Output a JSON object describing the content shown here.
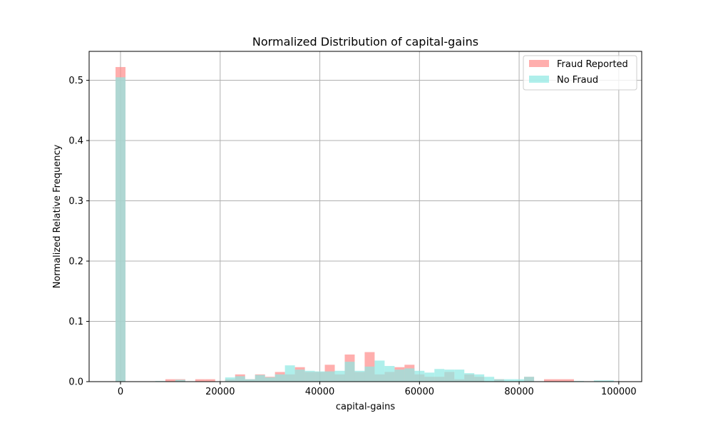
{
  "chart_data": {
    "type": "bar",
    "title": "Normalized Distribution of capital-gains",
    "xlabel": "capital-gains",
    "ylabel": "Normalized Relative Frequency",
    "xlim": [
      -6300,
      104600
    ],
    "ylim": [
      0,
      0.548
    ],
    "xticks": [
      0,
      20000,
      40000,
      60000,
      80000,
      100000
    ],
    "xtick_labels": [
      "0",
      "20000",
      "40000",
      "60000",
      "80000",
      "100000"
    ],
    "yticks": [
      0.0,
      0.1,
      0.2,
      0.3,
      0.4,
      0.5
    ],
    "ytick_labels": [
      "0.0",
      "0.1",
      "0.2",
      "0.3",
      "0.4",
      "0.5"
    ],
    "grid": true,
    "legend_position": "top-right",
    "bin_start": -1000,
    "bin_width": 2000,
    "series": [
      {
        "name": "Fraud Reported",
        "color": "#ff8c8a",
        "values": [
          0.522,
          0,
          0,
          0,
          0,
          0.004,
          0.004,
          0,
          0.004,
          0.004,
          0,
          0.004,
          0.012,
          0.004,
          0.012,
          0.008,
          0.016,
          0.012,
          0.024,
          0.016,
          0.016,
          0.028,
          0.012,
          0.045,
          0.016,
          0.049,
          0.012,
          0.016,
          0.024,
          0.028,
          0.012,
          0.008,
          0.008,
          0.016,
          0.004,
          0.012,
          0.008,
          0,
          0.004,
          0,
          0,
          0.008,
          0,
          0.004,
          0.004,
          0.004,
          0,
          0,
          0,
          0,
          0
        ]
      },
      {
        "name": "No Fraud",
        "color": "#8de8e2",
        "values": [
          0.505,
          0,
          0,
          0,
          0.001,
          0,
          0.003,
          0,
          0,
          0,
          0,
          0.007,
          0.009,
          0.004,
          0.011,
          0.007,
          0.012,
          0.027,
          0.02,
          0.018,
          0.017,
          0.017,
          0.018,
          0.033,
          0.018,
          0.025,
          0.035,
          0.026,
          0.02,
          0.022,
          0.018,
          0.015,
          0.021,
          0.02,
          0.02,
          0.014,
          0.012,
          0.008,
          0.004,
          0.004,
          0.004,
          0.008,
          0,
          0,
          0,
          0,
          0.001,
          0,
          0.002,
          0.002,
          0
        ]
      }
    ]
  }
}
